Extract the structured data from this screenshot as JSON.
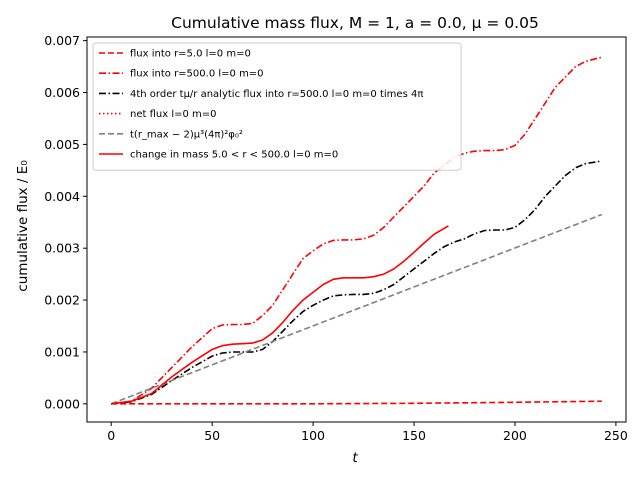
{
  "chart_data": {
    "type": "line",
    "title": "Cumulative mass flux, M = 1, a = 0.0, μ = 0.05",
    "xlabel": "t",
    "ylabel": "cumulative flux / E₀",
    "xlim": [
      -12,
      255
    ],
    "ylim": [
      -0.00035,
      0.00707
    ],
    "xticks": [
      0,
      50,
      100,
      150,
      200,
      250
    ],
    "xtick_labels": [
      "0",
      "50",
      "100",
      "150",
      "200",
      "250"
    ],
    "yticks": [
      0,
      0.001,
      0.002,
      0.003,
      0.004,
      0.005,
      0.006,
      0.007
    ],
    "ytick_labels": [
      "0.000",
      "0.001",
      "0.002",
      "0.003",
      "0.004",
      "0.005",
      "0.006",
      "0.007"
    ],
    "grid": false,
    "legend_position": "upper-left",
    "series": [
      {
        "name": "flux into r=5.0 l=0 m=0",
        "color": "#ff0000",
        "dash": "dashed",
        "x": [
          0,
          50,
          100,
          150,
          200,
          243
        ],
        "y": [
          0.0,
          0.0,
          0.0,
          1e-05,
          3e-05,
          5e-05
        ]
      },
      {
        "name": "flux into r=500.0 l=0 m=0",
        "color": "#ff0000",
        "dash": "dashdot",
        "x": [
          0,
          10,
          20,
          30,
          40,
          50,
          55,
          60,
          65,
          70,
          75,
          80,
          85,
          90,
          95,
          100,
          105,
          110,
          115,
          120,
          125,
          130,
          135,
          140,
          145,
          150,
          155,
          160,
          165,
          170,
          175,
          180,
          185,
          190,
          195,
          200,
          205,
          210,
          215,
          220,
          225,
          230,
          235,
          243
        ],
        "y": [
          0.0,
          5e-05,
          0.0003,
          0.0007,
          0.0011,
          0.00145,
          0.00152,
          0.00153,
          0.00153,
          0.00155,
          0.0017,
          0.0019,
          0.0022,
          0.0025,
          0.0028,
          0.00295,
          0.00308,
          0.00315,
          0.00316,
          0.00316,
          0.00318,
          0.00325,
          0.0034,
          0.0036,
          0.0038,
          0.004,
          0.0042,
          0.00445,
          0.0046,
          0.00475,
          0.00483,
          0.00487,
          0.00488,
          0.00488,
          0.0049,
          0.00498,
          0.0052,
          0.0055,
          0.0058,
          0.0061,
          0.0063,
          0.0065,
          0.0066,
          0.00668
        ]
      },
      {
        "name": "4th order tμ/r analytic flux into r=500.0 l=0 m=0 times 4π",
        "color": "#000000",
        "dash": "dashdot",
        "x": [
          0,
          10,
          20,
          30,
          40,
          50,
          55,
          60,
          65,
          70,
          75,
          80,
          85,
          90,
          95,
          100,
          105,
          110,
          115,
          120,
          125,
          130,
          135,
          140,
          145,
          150,
          155,
          160,
          165,
          170,
          175,
          180,
          185,
          190,
          195,
          200,
          205,
          210,
          215,
          220,
          225,
          230,
          235,
          243
        ],
        "y": [
          0.0,
          4e-05,
          0.00018,
          0.00045,
          0.0007,
          0.00092,
          0.00098,
          0.001,
          0.001,
          0.001,
          0.00105,
          0.0012,
          0.0014,
          0.0016,
          0.00178,
          0.0019,
          0.002,
          0.00208,
          0.0021,
          0.00211,
          0.00211,
          0.00213,
          0.0022,
          0.0023,
          0.00245,
          0.0026,
          0.00275,
          0.0029,
          0.00303,
          0.00312,
          0.00318,
          0.00328,
          0.00334,
          0.00335,
          0.00335,
          0.0034,
          0.00355,
          0.00375,
          0.004,
          0.0042,
          0.0044,
          0.00455,
          0.00463,
          0.00468
        ]
      },
      {
        "name": "net flux l=0 m=0",
        "color": "#ff0000",
        "dash": "dotted",
        "x": [],
        "y": []
      },
      {
        "name": "t(r_max − 2)μ³(4π)²φ₀²",
        "color": "#808080",
        "dash": "dashed",
        "x": [
          0,
          243
        ],
        "y": [
          0.0,
          0.00365
        ]
      },
      {
        "name": "change in mass 5.0 < r < 500.0 l=0 m=0",
        "color": "#ff0000",
        "dash": "solid",
        "x": [
          0,
          10,
          20,
          30,
          40,
          50,
          55,
          60,
          65,
          70,
          75,
          80,
          85,
          90,
          95,
          100,
          105,
          110,
          115,
          120,
          125,
          130,
          135,
          140,
          145,
          150,
          155,
          160,
          167
        ],
        "y": [
          0.0,
          5e-05,
          0.0002,
          0.00052,
          0.0008,
          0.00105,
          0.00112,
          0.00115,
          0.00116,
          0.00117,
          0.00123,
          0.00137,
          0.00157,
          0.0018,
          0.002,
          0.00215,
          0.0023,
          0.0024,
          0.00243,
          0.00243,
          0.00243,
          0.00245,
          0.0025,
          0.0026,
          0.00275,
          0.00292,
          0.0031,
          0.00327,
          0.00343
        ]
      }
    ]
  }
}
